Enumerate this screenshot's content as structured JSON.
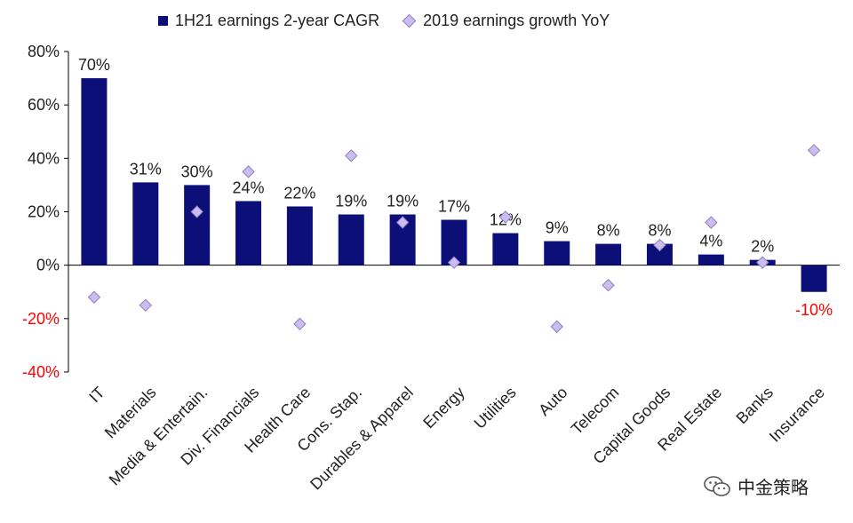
{
  "legend": {
    "bar_label": "1H21 earnings 2-year CAGR",
    "marker_label": "2019 earnings growth YoY"
  },
  "watermark": {
    "text": "中金策略",
    "icon": "wechat-icon"
  },
  "colors": {
    "bar": "#0c0f78",
    "marker_fill": "#cbbdf0",
    "marker_stroke": "#8e7ec4",
    "negative_label": "#ff0000",
    "axis": "#000000"
  },
  "chart_data": {
    "type": "bar",
    "categories": [
      "IT",
      "Materials",
      "Media & Entertain.",
      "Div. Financials",
      "Health Care",
      "Cons. Stap.",
      "Durables & Apparel",
      "Energy",
      "Utilities",
      "Auto",
      "Telecom",
      "Capital Goods",
      "Real Estate",
      "Banks",
      "Insurance"
    ],
    "series": [
      {
        "name": "1H21 earnings 2-year CAGR",
        "type": "bar",
        "values": [
          70,
          31,
          30,
          24,
          22,
          19,
          19,
          17,
          12,
          9,
          8,
          8,
          4,
          2,
          -10
        ],
        "data_labels": [
          "70%",
          "31%",
          "30%",
          "24%",
          "22%",
          "19%",
          "19%",
          "17%",
          "12%",
          "9%",
          "8%",
          "8%",
          "4%",
          "2%",
          "-10%"
        ]
      },
      {
        "name": "2019 earnings growth YoY",
        "type": "scatter",
        "marker": "diamond",
        "values": [
          -12,
          -15,
          20,
          35,
          -22,
          41,
          16,
          1,
          18,
          -23,
          -7.5,
          7.5,
          16,
          1,
          43
        ]
      }
    ],
    "ylim": [
      -40,
      80
    ],
    "yticks": [
      -40,
      -20,
      0,
      20,
      40,
      60,
      80
    ],
    "ytick_labels": [
      "-40%",
      "-20%",
      "0%",
      "20%",
      "40%",
      "60%",
      "80%"
    ],
    "grid": false,
    "legend_position": "top"
  }
}
